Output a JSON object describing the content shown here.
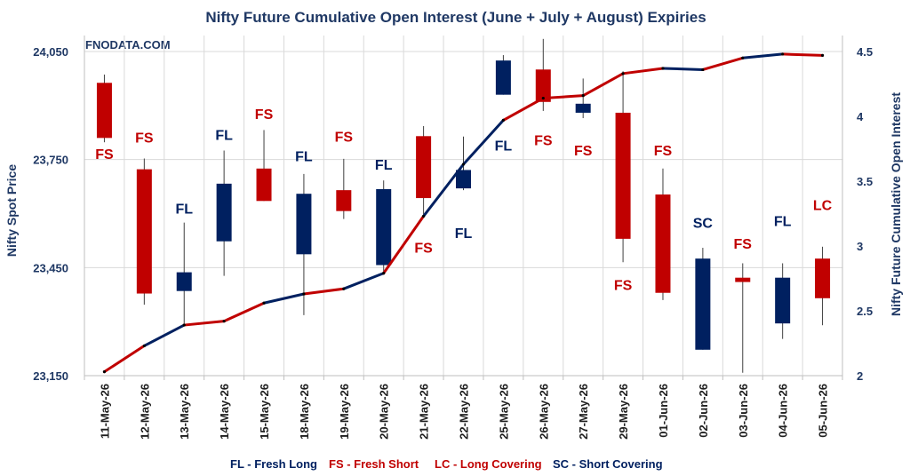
{
  "chart_data": {
    "type": "candlestick+line",
    "title": "Nifty Future Cumulative Open Interest (June + July + August) Expiries",
    "watermark": "FNODATA.COM",
    "ylabel_left": "Nifty Spot Price",
    "ylabel_right": "Nifty Future Cumulative Open Interest",
    "ylim_left": [
      23150,
      24050
    ],
    "yticks_left": [
      23150,
      23450,
      23750,
      24050
    ],
    "ytick_labels_left": [
      "23,150",
      "23,450",
      "23,750",
      "24,050"
    ],
    "ylim_right": [
      2,
      4.5
    ],
    "yticks_right": [
      2,
      2.5,
      3,
      3.5,
      4,
      4.5
    ],
    "ytick_labels_right": [
      "2",
      "2.5",
      "3",
      "3.5",
      "4",
      "4.5"
    ],
    "categories": [
      "11-May-26",
      "12-May-26",
      "13-May-26",
      "14-May-26",
      "15-May-26",
      "18-May-26",
      "19-May-26",
      "20-May-26",
      "21-May-26",
      "22-May-26",
      "25-May-26",
      "26-May-26",
      "27-May-26",
      "29-May-26",
      "01-Jun-26",
      "02-Jun-26",
      "03-Jun-26",
      "04-Jun-26",
      "05-Jun-26"
    ],
    "candles": [
      {
        "open": 23963,
        "close": 23810,
        "high": 23986,
        "low": 23798,
        "color": "red"
      },
      {
        "open": 23723,
        "close": 23378,
        "high": 23753,
        "low": 23347,
        "color": "red"
      },
      {
        "open": 23385,
        "close": 23437,
        "high": 23575,
        "low": 23290,
        "color": "navy"
      },
      {
        "open": 23523,
        "close": 23683,
        "high": 23775,
        "low": 23427,
        "color": "navy"
      },
      {
        "open": 23725,
        "close": 23635,
        "high": 23832,
        "low": 23635,
        "color": "red"
      },
      {
        "open": 23655,
        "close": 23487,
        "high": 23710,
        "low": 23318,
        "color": "navy"
      },
      {
        "open": 23665,
        "close": 23607,
        "high": 23752,
        "low": 23585,
        "color": "red"
      },
      {
        "open": 23457,
        "close": 23668,
        "high": 23692,
        "low": 23430,
        "color": "navy"
      },
      {
        "open": 23815,
        "close": 23643,
        "high": 23843,
        "low": 23598,
        "color": "red"
      },
      {
        "open": 23670,
        "close": 23721,
        "high": 23814,
        "low": 23665,
        "color": "navy"
      },
      {
        "open": 23930,
        "close": 24025,
        "high": 24040,
        "low": 23930,
        "color": "navy"
      },
      {
        "open": 24000,
        "close": 23910,
        "high": 24085,
        "low": 23885,
        "color": "red"
      },
      {
        "open": 23880,
        "close": 23905,
        "high": 23975,
        "low": 23865,
        "color": "navy"
      },
      {
        "open": 23880,
        "close": 23530,
        "high": 23995,
        "low": 23465,
        "color": "red"
      },
      {
        "open": 23653,
        "close": 23380,
        "high": 23725,
        "low": 23360,
        "color": "red"
      },
      {
        "open": 23222,
        "close": 23475,
        "high": 23505,
        "low": 23222,
        "color": "navy"
      },
      {
        "open": 23422,
        "close": 23410,
        "high": 23462,
        "low": 23158,
        "color": "red"
      },
      {
        "open": 23295,
        "close": 23422,
        "high": 23462,
        "low": 23252,
        "color": "navy"
      },
      {
        "open": 23475,
        "close": 23365,
        "high": 23508,
        "low": 23290,
        "color": "red"
      }
    ],
    "open_interest": [
      2.03,
      2.23,
      2.39,
      2.42,
      2.56,
      2.63,
      2.67,
      2.79,
      3.23,
      3.63,
      3.97,
      4.14,
      4.16,
      4.33,
      4.37,
      4.36,
      4.45,
      4.48,
      4.47
    ],
    "oi_segment_colors": [
      "red",
      "navy",
      "red",
      "red",
      "navy",
      "red",
      "navy",
      "red",
      "navy",
      "navy",
      "red",
      "red",
      "red",
      "red",
      "navy",
      "red",
      "navy",
      "red"
    ],
    "annotations": [
      {
        "label": "FS",
        "category": 0,
        "y": 23752,
        "color": "red"
      },
      {
        "label": "FS",
        "category": 1,
        "y": 23797,
        "color": "red"
      },
      {
        "label": "FL",
        "category": 2,
        "y": 23600,
        "color": "navy"
      },
      {
        "label": "FL",
        "category": 3,
        "y": 23805,
        "color": "navy"
      },
      {
        "label": "FS",
        "category": 4,
        "y": 23862,
        "color": "red"
      },
      {
        "label": "FL",
        "category": 5,
        "y": 23745,
        "color": "navy"
      },
      {
        "label": "FS",
        "category": 6,
        "y": 23800,
        "color": "red"
      },
      {
        "label": "FL",
        "category": 7,
        "y": 23722,
        "color": "navy"
      },
      {
        "label": "FS",
        "category": 8,
        "y": 23491,
        "color": "red"
      },
      {
        "label": "FL",
        "category": 9,
        "y": 23532,
        "color": "navy"
      },
      {
        "label": "FL",
        "category": 10,
        "y": 23775,
        "color": "navy"
      },
      {
        "label": "FS",
        "category": 11,
        "y": 23790,
        "color": "red"
      },
      {
        "label": "FS",
        "category": 12,
        "y": 23762,
        "color": "red"
      },
      {
        "label": "FS",
        "category": 13,
        "y": 23388,
        "color": "red"
      },
      {
        "label": "FS",
        "category": 14,
        "y": 23762,
        "color": "red"
      },
      {
        "label": "SC",
        "category": 15,
        "y": 23560,
        "color": "navy"
      },
      {
        "label": "FS",
        "category": 16,
        "y": 23502,
        "color": "red"
      },
      {
        "label": "FL",
        "category": 17,
        "y": 23565,
        "color": "navy"
      },
      {
        "label": "LC",
        "category": 18,
        "y": 23610,
        "color": "red"
      }
    ],
    "legend": [
      {
        "text": "FL - Fresh Long",
        "color": "navy"
      },
      {
        "text": "FS - Fresh Short",
        "color": "red"
      },
      {
        "text": "LC - Long Covering",
        "color": "red"
      },
      {
        "text": "SC - Short Covering",
        "color": "navy"
      }
    ],
    "legend_position": "bottom",
    "grid": true,
    "colors": {
      "red": "#c00000",
      "navy": "#002060",
      "grid": "#d9d9d9",
      "axis": "#bfbfbf",
      "title": "#1f3864"
    }
  }
}
